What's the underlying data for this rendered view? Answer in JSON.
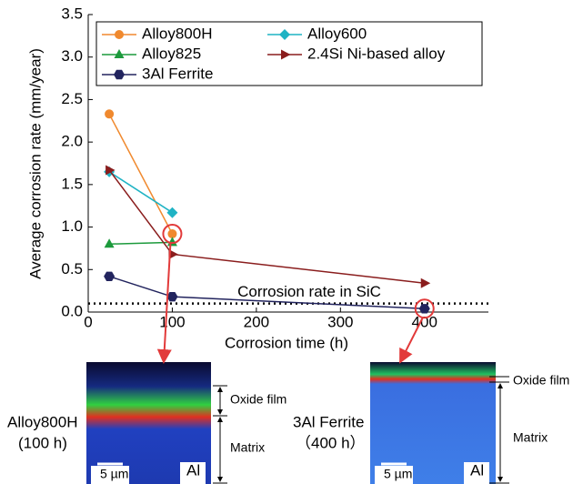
{
  "chart_data": {
    "type": "line",
    "xlabel": "Corrosion time (h)",
    "ylabel": "Average corrosion rate (mm/year)",
    "xlim": [
      0,
      476
    ],
    "ylim": [
      0,
      3.5
    ],
    "xticks": [
      0,
      100,
      200,
      300,
      400
    ],
    "yticks": [
      {
        "value": 0,
        "label": "0.0"
      },
      {
        "value": 0.5,
        "label": "0.5"
      },
      {
        "value": 1,
        "label": "1.0"
      },
      {
        "value": 1.5,
        "label": "1.5"
      },
      {
        "value": 2,
        "label": "2.0"
      },
      {
        "value": 2.5,
        "label": "2.5"
      },
      {
        "value": 3,
        "label": "3.0"
      },
      {
        "value": 3.5,
        "label": "3.5"
      }
    ],
    "series": [
      {
        "name": "Alloy800H",
        "color": "#f0892e",
        "marker": "circle",
        "x": [
          25,
          100
        ],
        "values": [
          2.33,
          0.92
        ]
      },
      {
        "name": "Alloy600",
        "color": "#1fb3c4",
        "marker": "diamond",
        "x": [
          25,
          100
        ],
        "values": [
          1.65,
          1.17
        ]
      },
      {
        "name": "Alloy825",
        "color": "#1c9a3c",
        "marker": "triangle",
        "x": [
          25,
          100
        ],
        "values": [
          0.8,
          0.82
        ]
      },
      {
        "name": "2.4Si Ni-based alloy",
        "color": "#8a1d1d",
        "marker": "right-triangle",
        "x": [
          25,
          100,
          400
        ],
        "values": [
          1.67,
          0.68,
          0.34
        ]
      },
      {
        "name": "3Al Ferrite",
        "color": "#22245e",
        "marker": "hexagon",
        "x": [
          25,
          100,
          400
        ],
        "values": [
          0.42,
          0.18,
          0.04
        ]
      }
    ],
    "reference_line": {
      "value": 0.1,
      "label": "Corrosion rate in SiC"
    }
  },
  "insets": [
    {
      "name": "Alloy800H",
      "time": "(100 h)",
      "oxide": "Oxide film",
      "matrix": "Matrix",
      "scale": "5 µm",
      "element": "Al"
    },
    {
      "name": "3Al Ferrite",
      "time": "（400 h）",
      "oxide": "Oxide film",
      "matrix": "Matrix",
      "scale": "5 µm",
      "element": "Al"
    }
  ]
}
